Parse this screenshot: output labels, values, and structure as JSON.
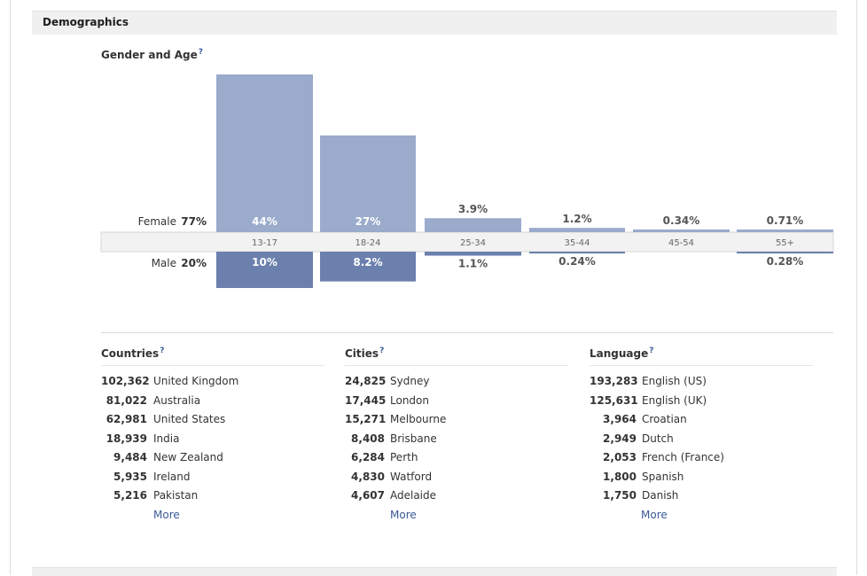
{
  "section": {
    "title": "Demographics"
  },
  "gender_age": {
    "title": "Gender and Age",
    "help": "?"
  },
  "chart_data": {
    "type": "bar",
    "categories": [
      "13-17",
      "18-24",
      "25-34",
      "35-44",
      "45-54",
      "55+"
    ],
    "series": [
      {
        "name": "Female",
        "total_label": "77%",
        "values": [
          44,
          27,
          3.9,
          1.2,
          0.34,
          0.71
        ],
        "labels": [
          "44%",
          "27%",
          "3.9%",
          "1.2%",
          "0.34%",
          "0.71%"
        ],
        "color": "#9aabcb"
      },
      {
        "name": "Male",
        "total_label": "20%",
        "values": [
          10,
          8.2,
          1.1,
          0.24,
          0,
          0.28
        ],
        "labels": [
          "10%",
          "8.2%",
          "1.1%",
          "0.24%",
          "",
          "0.28%"
        ],
        "color": "#6b80ad"
      }
    ],
    "title": "",
    "xlabel": "",
    "ylabel": ""
  },
  "countries": {
    "title": "Countries",
    "help": "?",
    "more": "More",
    "items": [
      {
        "count": "102,362",
        "name": "United Kingdom"
      },
      {
        "count": "81,022",
        "name": "Australia"
      },
      {
        "count": "62,981",
        "name": "United States"
      },
      {
        "count": "18,939",
        "name": "India"
      },
      {
        "count": "9,484",
        "name": "New Zealand"
      },
      {
        "count": "5,935",
        "name": "Ireland"
      },
      {
        "count": "5,216",
        "name": "Pakistan"
      }
    ]
  },
  "cities": {
    "title": "Cities",
    "help": "?",
    "more": "More",
    "items": [
      {
        "count": "24,825",
        "name": "Sydney"
      },
      {
        "count": "17,445",
        "name": "London"
      },
      {
        "count": "15,271",
        "name": "Melbourne"
      },
      {
        "count": "8,408",
        "name": "Brisbane"
      },
      {
        "count": "6,284",
        "name": "Perth"
      },
      {
        "count": "4,830",
        "name": "Watford"
      },
      {
        "count": "4,607",
        "name": "Adelaide"
      }
    ]
  },
  "language": {
    "title": "Language",
    "help": "?",
    "more": "More",
    "items": [
      {
        "count": "193,283",
        "name": "English (US)"
      },
      {
        "count": "125,631",
        "name": "English (UK)"
      },
      {
        "count": "3,964",
        "name": "Croatian"
      },
      {
        "count": "2,949",
        "name": "Dutch"
      },
      {
        "count": "2,053",
        "name": "French (France)"
      },
      {
        "count": "1,800",
        "name": "Spanish"
      },
      {
        "count": "1,750",
        "name": "Danish"
      }
    ]
  }
}
